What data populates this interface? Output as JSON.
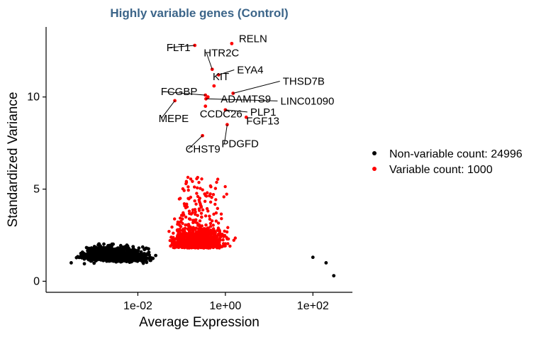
{
  "chart_data": {
    "type": "scatter",
    "title": "Highly variable genes (Control)",
    "xlabel": "Average Expression",
    "ylabel": "Standardized Variance",
    "x_scale": "log10",
    "xlim": [
      8e-05,
      800
    ],
    "ylim": [
      -0.6,
      13.8
    ],
    "x_ticks": [
      0.01,
      1,
      100
    ],
    "x_tick_labels": [
      "1e-02",
      "1e+00",
      "1e+02"
    ],
    "y_ticks": [
      0,
      5,
      10
    ],
    "y_tick_labels": [
      "0",
      "5",
      "10"
    ],
    "grid": false,
    "legend_position": "right",
    "series": [
      {
        "name": "Non-variable count: 24996",
        "color": "#000000"
      },
      {
        "name": "Variable count: 1000",
        "color": "#ff0000"
      }
    ],
    "labeled_genes": [
      {
        "gene": "RELN",
        "x": 1.4,
        "y": 12.9
      },
      {
        "gene": "FLT1",
        "x": 0.2,
        "y": 12.8
      },
      {
        "gene": "HTR2C",
        "x": 0.5,
        "y": 11.5
      },
      {
        "gene": "EYA4",
        "x": 0.7,
        "y": 11.2
      },
      {
        "gene": "KIT",
        "x": 0.55,
        "y": 10.6
      },
      {
        "gene": "THSD7B",
        "x": 1.5,
        "y": 10.2
      },
      {
        "gene": "FCGBP",
        "x": 0.35,
        "y": 10.1
      },
      {
        "gene": "ADAMTS9",
        "x": 0.4,
        "y": 10.0
      },
      {
        "gene": "LINC01090",
        "x": 0.36,
        "y": 9.9
      },
      {
        "gene": "MEPE",
        "x": 0.07,
        "y": 9.8
      },
      {
        "gene": "CCDC26",
        "x": 0.35,
        "y": 9.5
      },
      {
        "gene": "PLP1",
        "x": 1.0,
        "y": 9.3
      },
      {
        "gene": "FGF13",
        "x": 3.0,
        "y": 8.9
      },
      {
        "gene": "PDGFD",
        "x": 1.1,
        "y": 8.5
      },
      {
        "gene": "CHST9",
        "x": 0.3,
        "y": 7.9
      }
    ],
    "label_text": [
      "RELN",
      "FLT1",
      "HTR2C",
      "EYA4",
      "KIT",
      "THSD7B",
      "FCGBP",
      "ADAMTS9",
      "LINC01090",
      "MEPE",
      "CCDC26",
      "PLP1",
      "FGF13",
      "PDGFD",
      "CHST9"
    ],
    "background_points_note_free": true
  },
  "colors": {
    "title": "#3c6589",
    "variable": "#ff0000",
    "nonvariable": "#000000"
  }
}
